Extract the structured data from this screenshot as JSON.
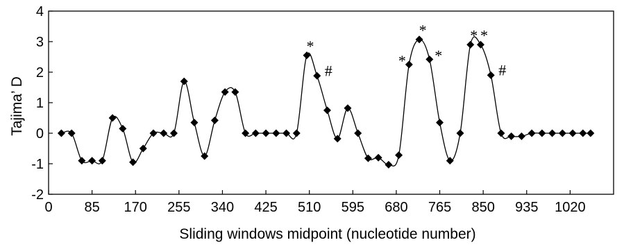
{
  "chart_data": {
    "type": "line",
    "title": "",
    "xlabel": "Sliding windows midpoint (nucleotide number)",
    "ylabel": "Tajima’ D",
    "xlim": [
      0,
      1105
    ],
    "ylim": [
      -2,
      4
    ],
    "xticks": [
      0,
      85,
      170,
      255,
      340,
      425,
      510,
      595,
      680,
      765,
      850,
      935,
      1020
    ],
    "yticks": [
      -2,
      -1,
      0,
      1,
      2,
      3,
      4
    ],
    "grid": false,
    "legend": "none",
    "line_color": "#000000",
    "marker": "diamond",
    "series": [
      {
        "x": [
          25,
          45,
          65,
          85,
          105,
          125,
          145,
          165,
          185,
          205,
          225,
          245,
          265,
          285,
          305,
          325,
          345,
          365,
          385,
          405,
          425,
          445,
          465,
          485,
          505,
          525,
          545,
          565,
          585,
          605,
          625,
          645,
          665,
          685,
          705,
          725,
          745,
          765,
          785,
          805,
          825,
          845,
          865,
          885,
          905,
          925,
          945,
          965,
          985,
          1005,
          1025,
          1045,
          1060
        ],
        "y": [
          0,
          0,
          -0.9,
          -0.9,
          -0.9,
          0.5,
          0.15,
          -0.95,
          -0.5,
          0,
          0,
          0,
          1.7,
          0.35,
          -0.75,
          0.42,
          1.35,
          1.35,
          0,
          0,
          0,
          0,
          0,
          0,
          2.55,
          1.88,
          0.75,
          -0.18,
          0.82,
          0,
          -0.82,
          -0.8,
          -1.03,
          -0.72,
          2.25,
          3.07,
          2.42,
          0.35,
          -0.9,
          0,
          2.9,
          2.9,
          1.9,
          0,
          -0.1,
          -0.1,
          0,
          0,
          0,
          0,
          0,
          0,
          0
        ]
      }
    ],
    "annotations": [
      {
        "text": "*",
        "x": 505,
        "y": 2.55
      },
      {
        "text": "#",
        "x": 525,
        "y": 1.88
      },
      {
        "text": "*",
        "x": 705,
        "y": 2.25
      },
      {
        "text": "*",
        "x": 725,
        "y": 3.07
      },
      {
        "text": "*",
        "x": 745,
        "y": 2.42
      },
      {
        "text": "*",
        "x": 825,
        "y": 2.9
      },
      {
        "text": "*",
        "x": 845,
        "y": 2.9
      },
      {
        "text": "#",
        "x": 865,
        "y": 1.9
      }
    ]
  }
}
